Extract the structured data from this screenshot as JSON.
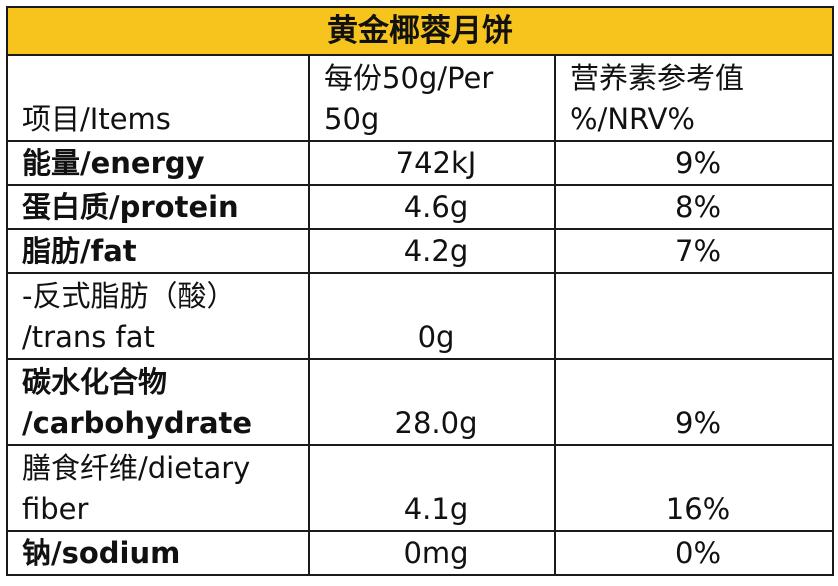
{
  "title": "黄金椰蓉月饼",
  "header": {
    "col1": "项目/Items",
    "col2_line1": "每份50g/Per",
    "col2_line2": "50g",
    "col3_line1": "营养素参考值",
    "col3_line2": "%/NRV%"
  },
  "rows": [
    {
      "label_line1": "能量/energy",
      "label_line2": "",
      "value": "742kJ",
      "nrv": "9%"
    },
    {
      "label_line1": "蛋白质/protein",
      "label_line2": "",
      "value": "4.6g",
      "nrv": "8%"
    },
    {
      "label_line1": "脂肪/fat",
      "label_line2": "",
      "value": "4.2g",
      "nrv": "7%"
    },
    {
      "label_line1": "-反式脂肪（酸）",
      "label_line2": "/trans fat",
      "value": "0g",
      "nrv": ""
    },
    {
      "label_line1": "碳水化合物",
      "label_line2": "/carbohydrate",
      "value": "28.0g",
      "nrv": "9%"
    },
    {
      "label_line1": "膳食纤维/dietary",
      "label_line2": "fiber",
      "value": "4.1g",
      "nrv": "16%"
    },
    {
      "label_line1": "钠/sodium",
      "label_line2": "",
      "value": "0mg",
      "nrv": "0%"
    }
  ]
}
